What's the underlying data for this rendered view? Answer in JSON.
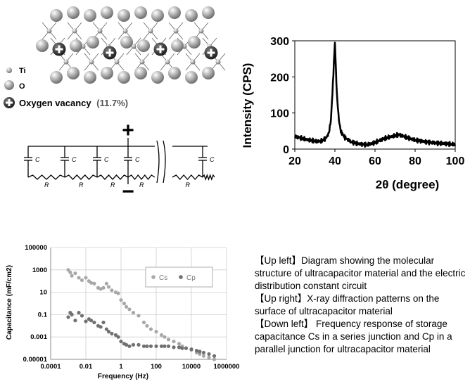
{
  "structure": {
    "legend": [
      {
        "symbol": "small-gray-ball",
        "label": "Ti"
      },
      {
        "symbol": "large-gray-ball",
        "label": "O"
      },
      {
        "symbol": "plus-ball",
        "label": "Oxygen vacancy",
        "value": "(11.7%)"
      }
    ],
    "colors": {
      "atom": "#9c9c9c",
      "vacancy": "#3a3a3a"
    }
  },
  "circuit": {
    "plus": "+",
    "minus": "−",
    "capacitor_label": "C",
    "resistor_label": "R"
  },
  "chart_data": [
    {
      "type": "line",
      "xlabel": "2θ (degree)",
      "ylabel": "Intensity (CPS)",
      "xlim": [
        20,
        100
      ],
      "ylim": [
        0,
        300
      ],
      "xticks": [
        "20",
        "40",
        "60",
        "80",
        "100"
      ],
      "yticks": [
        "0",
        "100",
        "200",
        "300"
      ],
      "grid": false,
      "series": [
        {
          "x": [
            20,
            25,
            30,
            33,
            35,
            36,
            37,
            38,
            39,
            39.5,
            40,
            40.5,
            41,
            42,
            43,
            45,
            48,
            52,
            56,
            60,
            64,
            68,
            72,
            76,
            80,
            85,
            90,
            95,
            100
          ],
          "y": [
            35,
            28,
            22,
            22,
            28,
            34,
            45,
            80,
            180,
            240,
            295,
            220,
            150,
            80,
            48,
            32,
            20,
            14,
            12,
            18,
            28,
            35,
            40,
            32,
            25,
            20,
            17,
            15,
            13
          ]
        }
      ]
    },
    {
      "type": "scatter",
      "xlabel": "Frequency (Hz)",
      "ylabel": "Capacitance (mF/cm2)",
      "xscale": "log",
      "yscale": "log",
      "xlim": [
        0.0001,
        1000000
      ],
      "ylim": [
        1e-05,
        100000
      ],
      "xticks": [
        "0.0001",
        "0.01",
        "1",
        "100",
        "10000",
        "1000000"
      ],
      "yticks": [
        "0.00001",
        "0.001",
        "0.1",
        "10",
        "1000",
        "100000"
      ],
      "grid": true,
      "legend_position": "top-right",
      "series": [
        {
          "name": "Cs",
          "color": "#a8a8a8",
          "x": [
            0.001,
            0.0013,
            0.0016,
            0.0025,
            0.004,
            0.006,
            0.01,
            0.015,
            0.02,
            0.03,
            0.05,
            0.07,
            0.1,
            0.15,
            0.2,
            0.3,
            0.5,
            0.7,
            1,
            1.5,
            2,
            3,
            5,
            10,
            20,
            30,
            50,
            100,
            200,
            300,
            500,
            1000,
            2000,
            3000,
            5000,
            10000,
            20000,
            30000,
            50000,
            100000,
            200000
          ],
          "y": [
            1000,
            600,
            300,
            500,
            200,
            120,
            200,
            100,
            70,
            60,
            25,
            20,
            25,
            60,
            30,
            15,
            10,
            8,
            2,
            1,
            0.5,
            0.3,
            0.15,
            0.08,
            0.02,
            0.01,
            0.005,
            0.003,
            0.0015,
            0.001,
            0.0006,
            0.0004,
            0.00025,
            0.00015,
            0.0001,
            7e-05,
            4e-05,
            3e-05,
            2e-05,
            1.5e-05,
            1e-05
          ]
        },
        {
          "name": "Cp",
          "color": "#707070",
          "x": [
            0.001,
            0.0013,
            0.0016,
            0.0025,
            0.004,
            0.006,
            0.01,
            0.015,
            0.02,
            0.03,
            0.05,
            0.07,
            0.1,
            0.15,
            0.2,
            0.3,
            0.5,
            0.7,
            1,
            1.5,
            2,
            3,
            5,
            10,
            20,
            30,
            50,
            100,
            200,
            300,
            500,
            1000,
            2000,
            3000,
            5000,
            10000,
            20000,
            30000,
            50000,
            100000,
            200000
          ],
          "y": [
            0.06,
            0.15,
            0.1,
            0.03,
            0.15,
            0.08,
            0.025,
            0.04,
            0.03,
            0.02,
            0.01,
            0.008,
            0.02,
            0.005,
            0.003,
            0.002,
            0.0015,
            0.001,
            0.0004,
            0.00025,
            0.0002,
            0.00015,
            0.0002,
            0.0002,
            0.00015,
            0.00015,
            0.00015,
            0.00015,
            0.00015,
            0.00015,
            0.00015,
            0.00012,
            0.00012,
            0.0001,
            0.0001,
            8e-05,
            6e-05,
            5e-05,
            4e-05,
            3e-05,
            2e-05
          ]
        }
      ]
    }
  ],
  "caption": [
    "【Up left】Diagram showing the molecular structure of ultracapacitor material and the electric distribution constant circuit",
    "【Up right】X-ray diffraction patterns on the surface of ultracapacitor material",
    "【Down left】 Frequency response of storage capacitance Cs in a series junction and Cp in a parallel junction for ultracapacitor material"
  ]
}
